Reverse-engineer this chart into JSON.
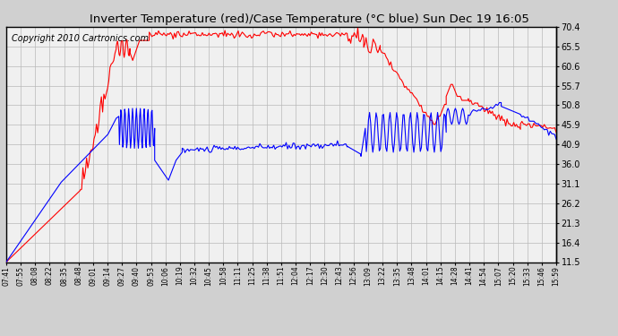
{
  "title": "Inverter Temperature (red)/Case Temperature (°C blue) Sun Dec 19 16:05",
  "copyright": "Copyright 2010 Cartronics.com",
  "yticks": [
    11.5,
    16.4,
    21.3,
    26.2,
    31.1,
    36.0,
    40.9,
    45.9,
    50.8,
    55.7,
    60.6,
    65.5,
    70.4
  ],
  "xtick_labels": [
    "07:41",
    "07:55",
    "08:08",
    "08:22",
    "08:35",
    "08:48",
    "09:01",
    "09:14",
    "09:27",
    "09:40",
    "09:53",
    "10:06",
    "10:19",
    "10:32",
    "10:45",
    "10:58",
    "11:11",
    "11:25",
    "11:38",
    "11:51",
    "12:04",
    "12:17",
    "12:30",
    "12:43",
    "12:56",
    "13:09",
    "13:22",
    "13:35",
    "13:48",
    "14:01",
    "14:15",
    "14:28",
    "14:41",
    "14:54",
    "15:07",
    "15:20",
    "15:33",
    "15:46",
    "15:59"
  ],
  "ymin": 11.5,
  "ymax": 70.4,
  "bg_color": "#d8d8d8",
  "plot_bg": "#ffffff",
  "grid_color": "#b0b0b0",
  "title_fontsize": 11,
  "copyright_fontsize": 7
}
